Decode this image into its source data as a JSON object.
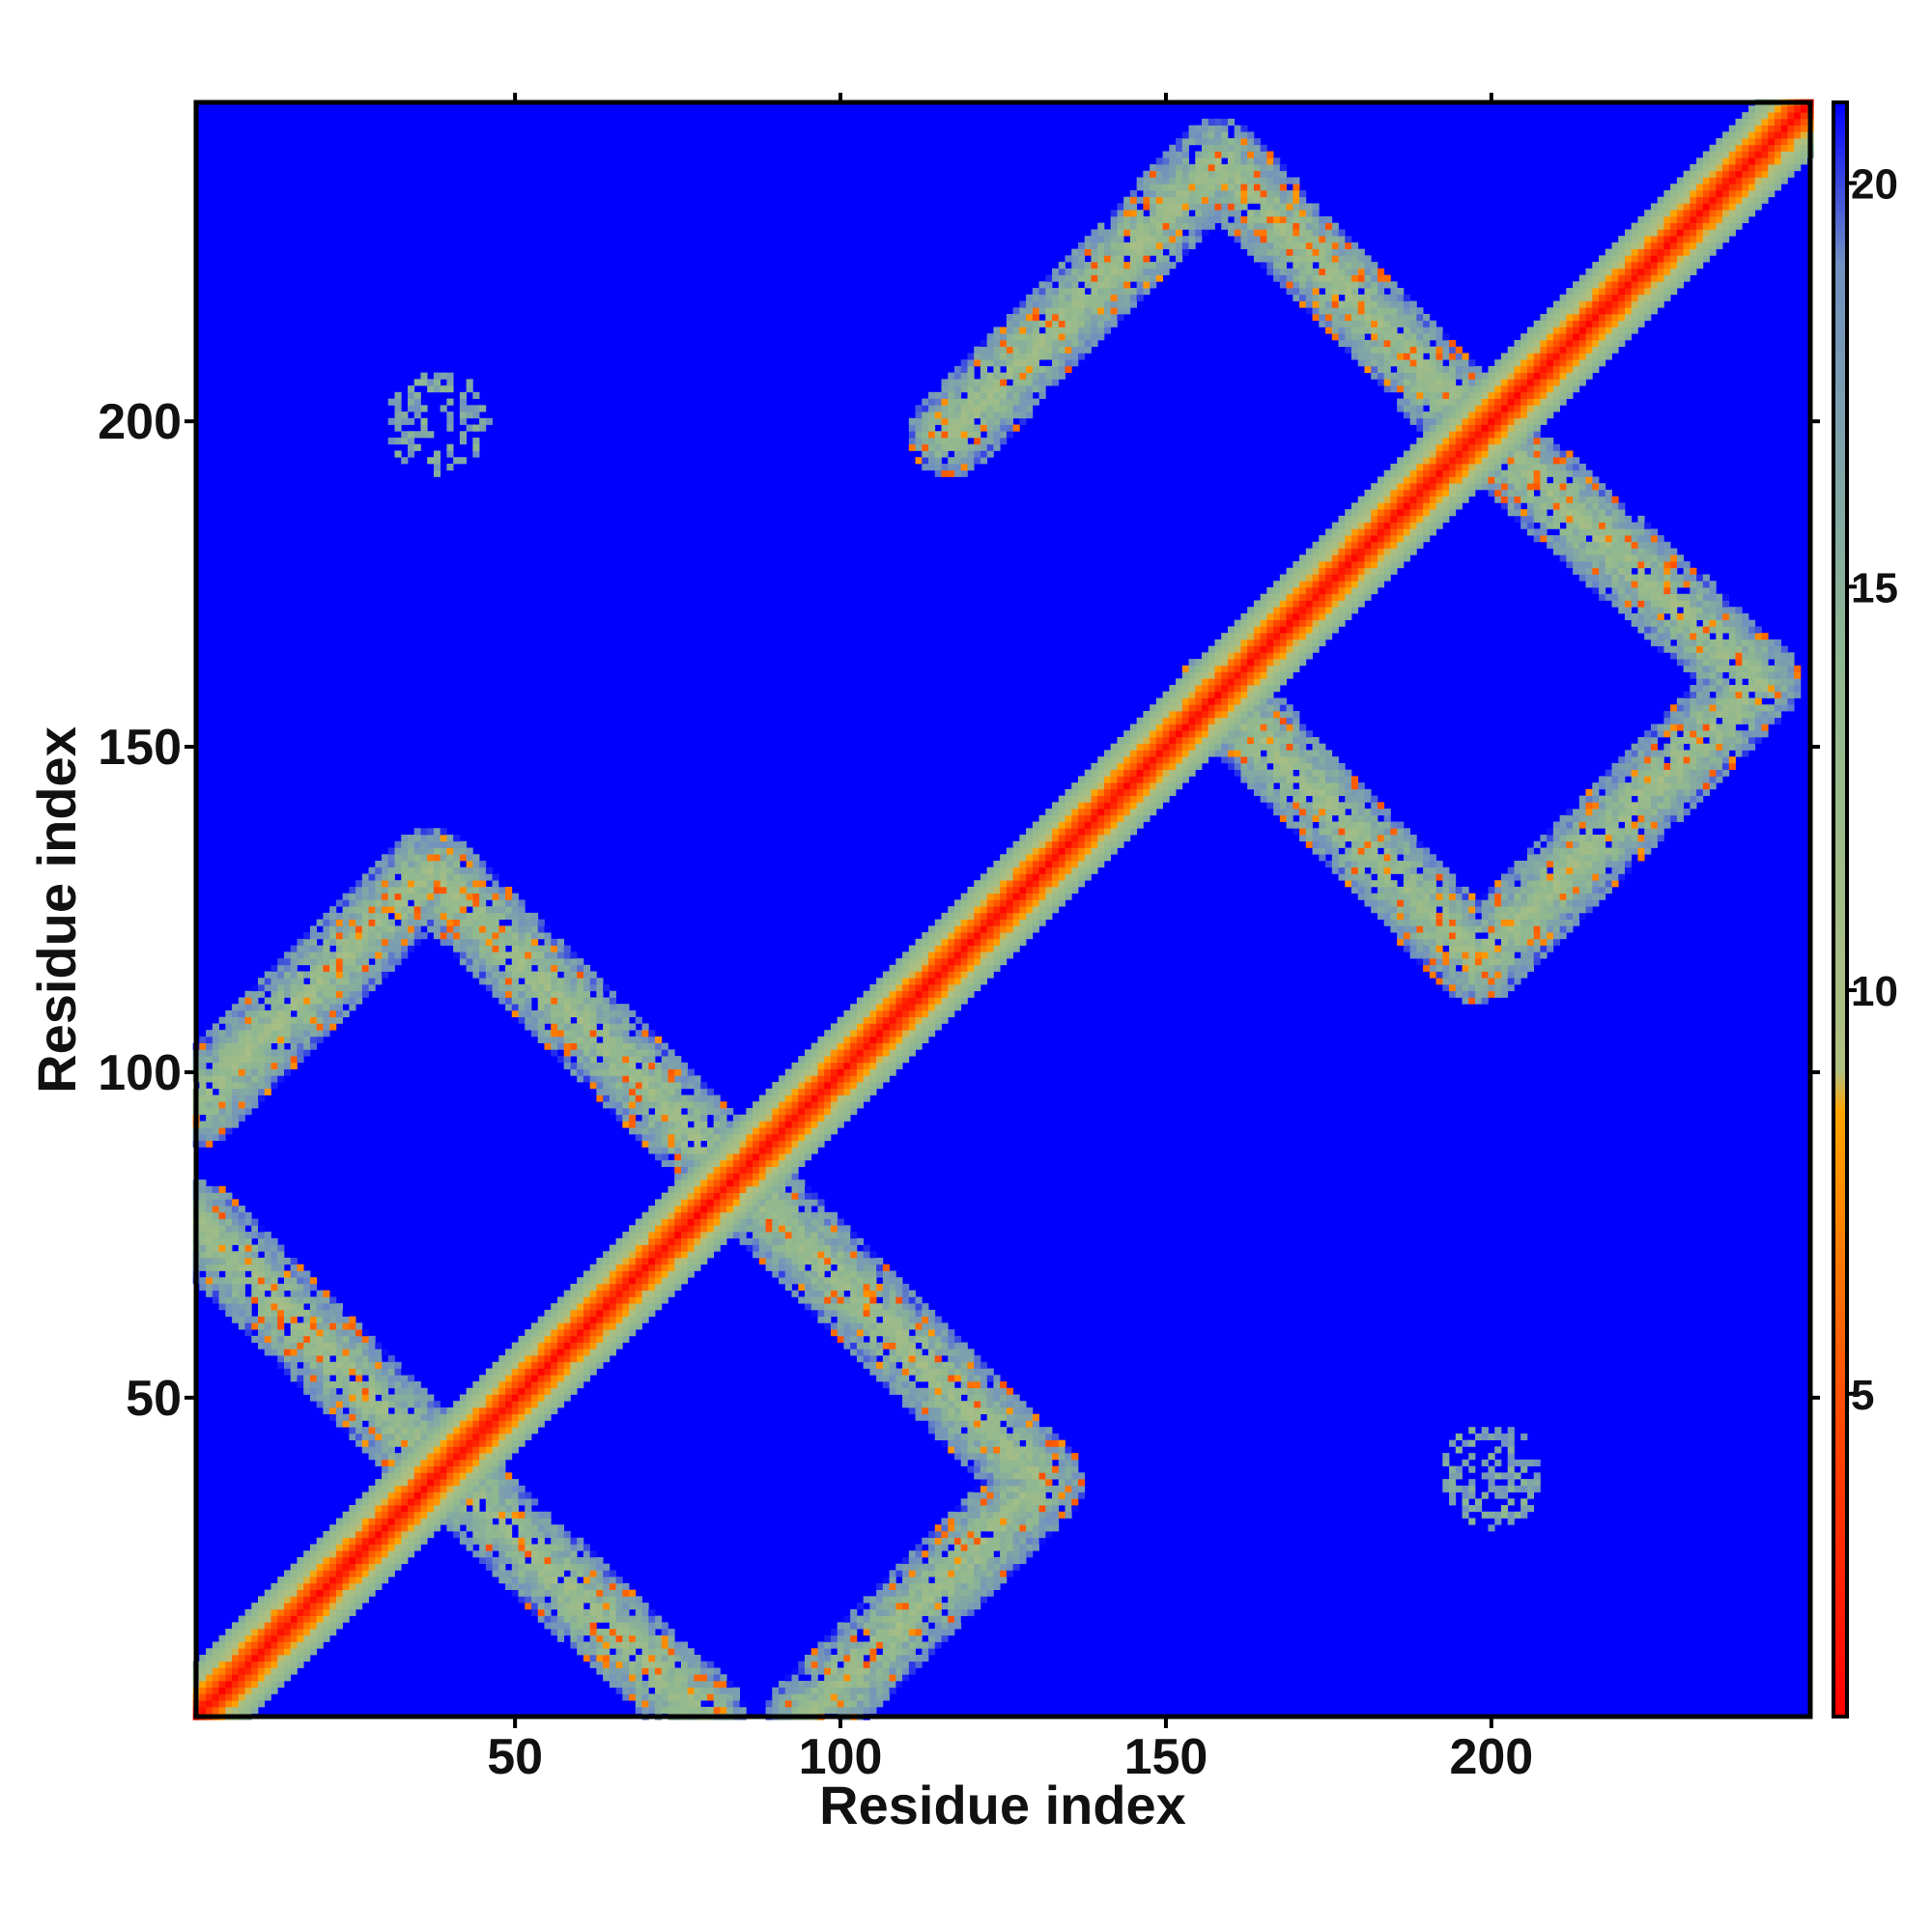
{
  "chart_data": {
    "type": "heatmap",
    "title": "",
    "xlabel": "Residue index",
    "ylabel": "Residue index",
    "xlim": [
      1,
      249
    ],
    "ylim": [
      1,
      249
    ],
    "x_ticks": [
      50,
      100,
      150,
      200
    ],
    "y_ticks": [
      50,
      100,
      150,
      200
    ],
    "x_tick_labels": [
      "50",
      "100",
      "150",
      "200"
    ],
    "y_tick_labels": [
      "50",
      "100",
      "150",
      "200"
    ],
    "colorbar": {
      "range": [
        1,
        21
      ],
      "ticks": [
        5,
        10,
        15,
        20
      ],
      "tick_labels": [
        "5",
        "10",
        "15",
        "20"
      ],
      "stops": [
        {
          "value": 1,
          "color": "#ff0000"
        },
        {
          "value": 5,
          "color": "#ff5000"
        },
        {
          "value": 8.5,
          "color": "#ffa500"
        },
        {
          "value": 9,
          "color": "#b0c080"
        },
        {
          "value": 14,
          "color": "#90b890"
        },
        {
          "value": 19,
          "color": "#7090c0"
        },
        {
          "value": 21,
          "color": "#0000ff"
        }
      ]
    },
    "background_value": 21,
    "background_color": "#0000ff",
    "description_features": {
      "diagonal_band": {
        "from": [
          1,
          1
        ],
        "to": [
          249,
          249
        ],
        "half_width_residues": 8
      },
      "antiparallel_strands": [
        {
          "from": [
            1,
            95
          ],
          "to": [
            37,
            131
          ]
        },
        {
          "from": [
            37,
            131
          ],
          "to": [
            83,
            85
          ]
        },
        {
          "from": [
            1,
            77
          ],
          "to": [
            38,
            40
          ]
        },
        {
          "from": [
            38,
            40
          ],
          "to": [
            79,
            1
          ]
        },
        {
          "from": [
            85,
            83
          ],
          "to": [
            131,
            37
          ]
        },
        {
          "from": [
            95,
            1
          ],
          "to": [
            131,
            37
          ]
        },
        {
          "from": [
            117,
            198
          ],
          "to": [
            158,
            240
          ]
        },
        {
          "from": [
            158,
            240
          ],
          "to": [
            198,
            199
          ]
        },
        {
          "from": [
            158,
            158
          ],
          "to": [
            198,
            117
          ]
        },
        {
          "from": [
            198,
            117
          ],
          "to": [
            241,
            160
          ]
        },
        {
          "from": [
            199,
            198
          ],
          "to": [
            241,
            160
          ]
        }
      ],
      "contact_clusters": [
        {
          "center": [
            38,
            200
          ],
          "radius": 8
        },
        {
          "center": [
            200,
            38
          ],
          "radius": 8
        }
      ]
    }
  }
}
